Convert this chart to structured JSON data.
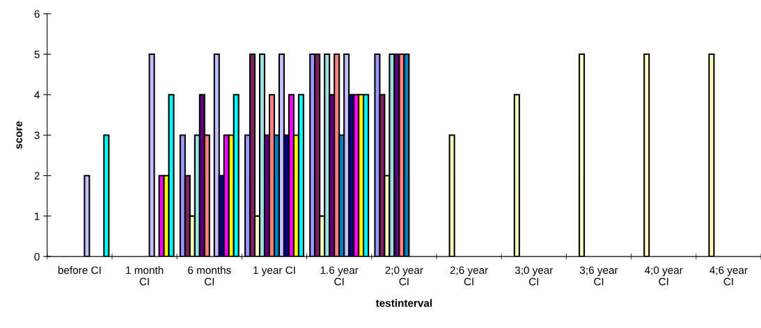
{
  "chart_data": {
    "type": "bar",
    "xlabel": "testinterval",
    "ylabel": "score",
    "categories": [
      "before CI",
      "1 month CI",
      "6 months CI",
      "1 year CI",
      "1.6 year CI",
      "2;0 year CI",
      "2;6 year CI",
      "3;0 year CI",
      "3;6 year CI",
      "4;0 year CI",
      "4;6 year CI"
    ],
    "series": [
      {
        "color": "#9999ff",
        "values": [
          null,
          null,
          3,
          3,
          5,
          5,
          null,
          null,
          null,
          null,
          null
        ]
      },
      {
        "color": "#802060",
        "values": [
          null,
          null,
          2,
          5,
          5,
          4,
          null,
          null,
          null,
          null,
          null
        ]
      },
      {
        "color": "#ffffc0",
        "values": [
          null,
          null,
          1,
          1,
          1,
          2,
          3,
          4,
          5,
          5,
          5
        ]
      },
      {
        "color": "#a0e0e0",
        "values": [
          null,
          null,
          3,
          5,
          5,
          5,
          null,
          null,
          null,
          null,
          null
        ]
      },
      {
        "color": "#600080",
        "values": [
          null,
          null,
          4,
          3,
          4,
          5,
          null,
          null,
          null,
          null,
          null
        ]
      },
      {
        "color": "#ff8080",
        "values": [
          null,
          null,
          3,
          4,
          5,
          5,
          null,
          null,
          null,
          null,
          null
        ]
      },
      {
        "color": "#0080c0",
        "values": [
          null,
          null,
          null,
          3,
          3,
          5,
          null,
          null,
          null,
          null,
          null
        ]
      },
      {
        "color": "#c0c0ff",
        "values": [
          2,
          5,
          5,
          5,
          5,
          null,
          null,
          null,
          null,
          null,
          null
        ]
      },
      {
        "color": "#000080",
        "values": [
          null,
          null,
          2,
          3,
          4,
          null,
          null,
          null,
          null,
          null,
          null
        ]
      },
      {
        "color": "#ff00ff",
        "values": [
          null,
          2,
          3,
          4,
          4,
          null,
          null,
          null,
          null,
          null,
          null
        ]
      },
      {
        "color": "#ffff00",
        "values": [
          null,
          2,
          3,
          3,
          4,
          null,
          null,
          null,
          null,
          null,
          null
        ]
      },
      {
        "color": "#00ffff",
        "values": [
          3,
          4,
          4,
          4,
          4,
          null,
          null,
          null,
          null,
          null,
          null
        ]
      }
    ],
    "ylim": [
      0,
      6
    ],
    "yticks": [
      0,
      1,
      2,
      3,
      4,
      5,
      6
    ],
    "grid": false,
    "legend": false
  }
}
